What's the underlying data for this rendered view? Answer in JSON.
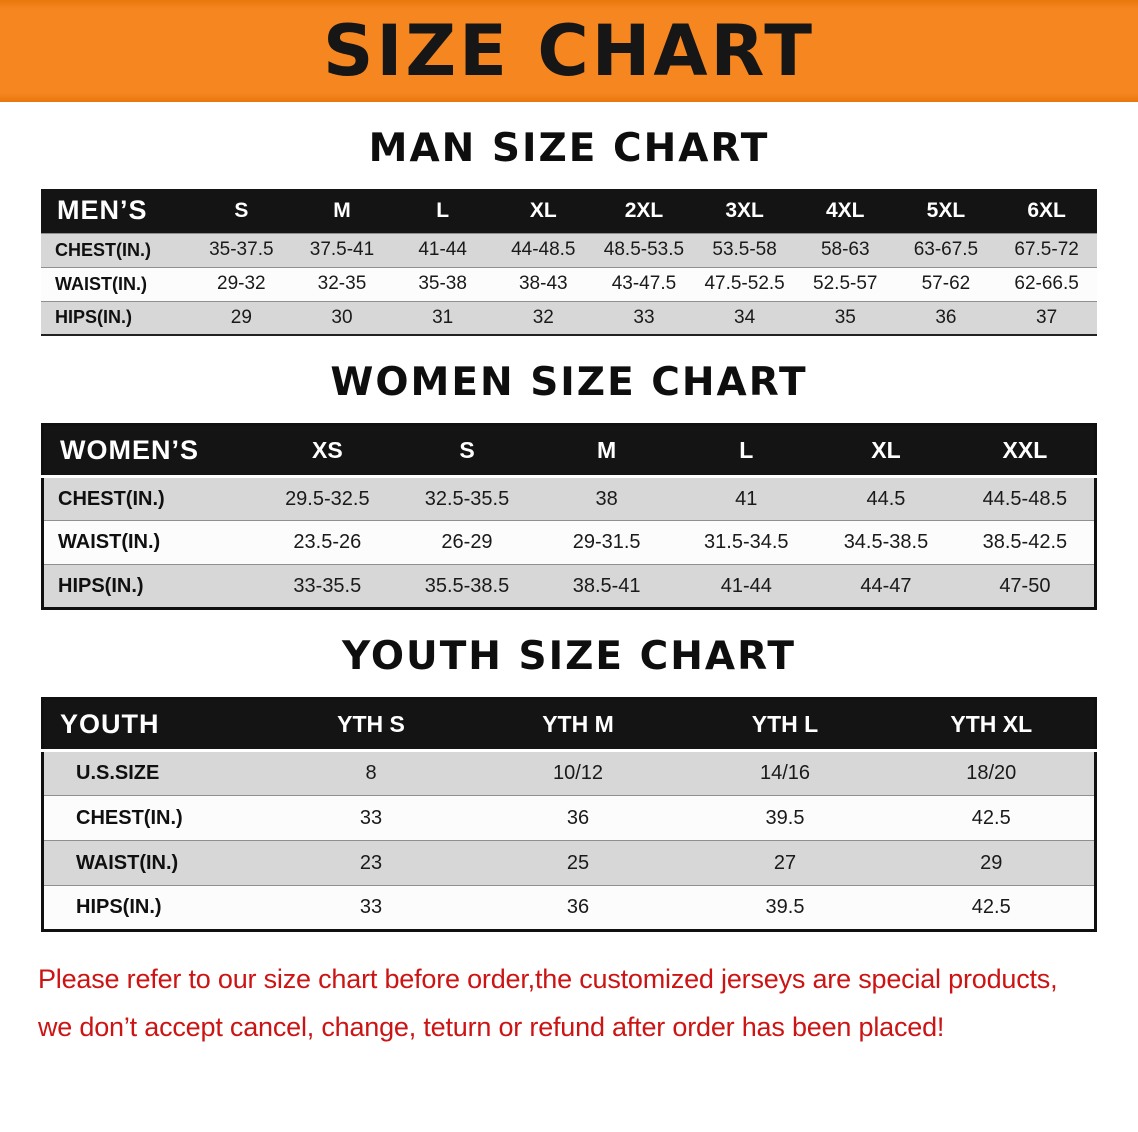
{
  "banner": {
    "title": "SIZE CHART"
  },
  "sections": {
    "men": {
      "title": "MAN SIZE CHART",
      "table": {
        "header": [
          "MEN’S",
          "S",
          "M",
          "L",
          "XL",
          "2XL",
          "3XL",
          "4XL",
          "5XL",
          "6XL"
        ],
        "rows": [
          [
            "CHEST(IN.)",
            "35-37.5",
            "37.5-41",
            "41-44",
            "44-48.5",
            "48.5-53.5",
            "53.5-58",
            "58-63",
            "63-67.5",
            "67.5-72"
          ],
          [
            "WAIST(IN.)",
            "29-32",
            "32-35",
            "35-38",
            "38-43",
            "43-47.5",
            "47.5-52.5",
            "52.5-57",
            "57-62",
            "62-66.5"
          ],
          [
            "HIPS(IN.)",
            "29",
            "30",
            "31",
            "32",
            "33",
            "34",
            "35",
            "36",
            "37"
          ]
        ]
      }
    },
    "women": {
      "title": "WOMEN SIZE CHART",
      "table": {
        "header": [
          "WOMEN’S",
          "XS",
          "S",
          "M",
          "L",
          "XL",
          "XXL"
        ],
        "rows": [
          [
            "CHEST(IN.)",
            "29.5-32.5",
            "32.5-35.5",
            "38",
            "41",
            "44.5",
            "44.5-48.5"
          ],
          [
            "WAIST(IN.)",
            "23.5-26",
            "26-29",
            "29-31.5",
            "31.5-34.5",
            "34.5-38.5",
            "38.5-42.5"
          ],
          [
            "HIPS(IN.)",
            "33-35.5",
            "35.5-38.5",
            "38.5-41",
            "41-44",
            "44-47",
            "47-50"
          ]
        ]
      }
    },
    "youth": {
      "title": "YOUTH SIZE CHART",
      "table": {
        "header": [
          "YOUTH",
          "YTH S",
          "YTH M",
          "YTH L",
          "YTH XL"
        ],
        "rows": [
          [
            "U.S.SIZE",
            "8",
            "10/12",
            "14/16",
            "18/20"
          ],
          [
            "CHEST(IN.)",
            "33",
            "36",
            "39.5",
            "42.5"
          ],
          [
            "WAIST(IN.)",
            "23",
            "25",
            "27",
            "29"
          ],
          [
            "HIPS(IN.)",
            "33",
            "36",
            "39.5",
            "42.5"
          ]
        ]
      }
    }
  },
  "footer": {
    "line1": "Please refer to our size chart before order,the customized jerseys are special products,",
    "line2": "we don’t accept cancel, change, teturn or refund after order has been placed!"
  },
  "colors": {
    "banner_orange": "#F6861F",
    "banner_orange_dark": "#E8770C",
    "table_header_black": "#141414",
    "row_gray": "#D7D7D7",
    "row_white": "#FCFCFC",
    "note_red": "#CC1414"
  }
}
